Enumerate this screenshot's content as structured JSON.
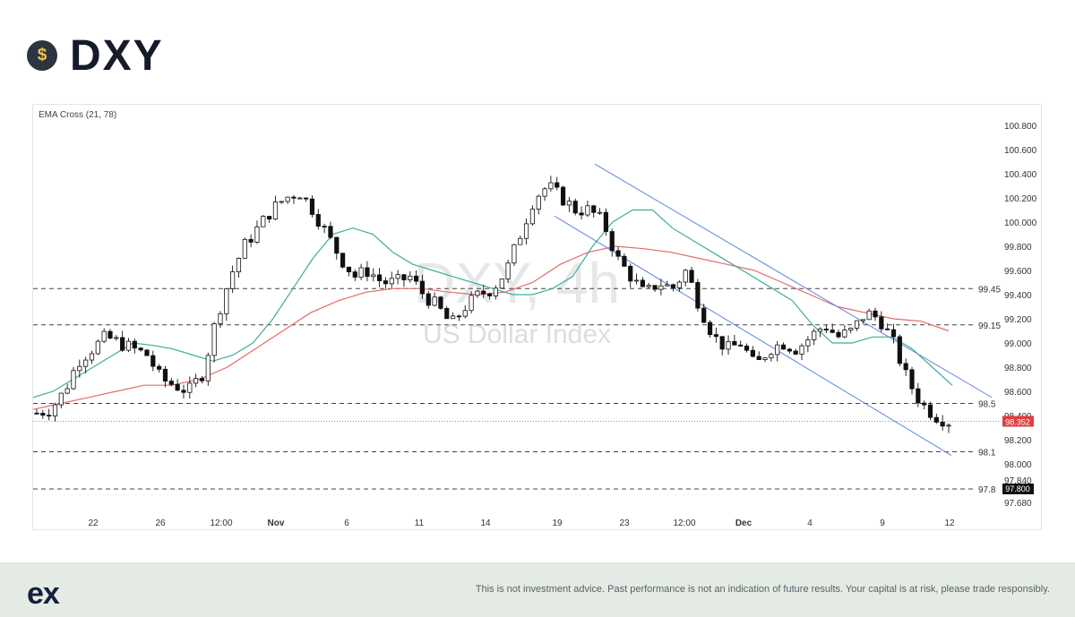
{
  "header": {
    "coin_icon": "dollar-coin-icon",
    "coin_symbol": "$",
    "title": "DXY"
  },
  "footer": {
    "logo": "ex",
    "disclaimer": "This is not investment advice. Past performance is not an indication of future results. Your capital is at risk, please trade responsibly."
  },
  "chart_data": {
    "type": "candlestick",
    "indicator_label": "EMA Cross (21, 78)",
    "watermark_title": "DXY, 4h",
    "watermark_subtitle": "US Dollar Index",
    "y_ticks": [
      "100.800",
      "100.600",
      "100.400",
      "100.200",
      "100.000",
      "99.800",
      "99.600",
      "99.400",
      "99.200",
      "99.000",
      "98.800",
      "98.600",
      "98.400",
      "98.200",
      "98.000",
      "97.840",
      "97.680"
    ],
    "x_ticks": [
      {
        "label": "22",
        "bold": false
      },
      {
        "label": "26",
        "bold": false
      },
      {
        "label": "12:00",
        "bold": false
      },
      {
        "label": "Nov",
        "bold": true
      },
      {
        "label": "6",
        "bold": false
      },
      {
        "label": "11",
        "bold": false
      },
      {
        "label": "14",
        "bold": false
      },
      {
        "label": "19",
        "bold": false
      },
      {
        "label": "23",
        "bold": false
      },
      {
        "label": "12:00",
        "bold": false
      },
      {
        "label": "Dec",
        "bold": true
      },
      {
        "label": "4",
        "bold": false
      },
      {
        "label": "9",
        "bold": false
      },
      {
        "label": "12",
        "bold": false
      }
    ],
    "levels": [
      {
        "label": "99.45",
        "value": 99.45
      },
      {
        "label": "99.15",
        "value": 99.15
      },
      {
        "label": "98.5",
        "value": 98.5
      },
      {
        "label": "98.1",
        "value": 98.1
      },
      {
        "label": "97.8",
        "value": 97.8
      }
    ],
    "current_price": {
      "label": "98.352",
      "value": 98.352
    },
    "level_price_box": {
      "label": "97.800",
      "value": 97.8
    },
    "close_path": [
      98.42,
      98.45,
      98.6,
      98.85,
      98.95,
      99.05,
      99.0,
      98.95,
      98.9,
      98.7,
      98.65,
      98.6,
      98.75,
      99.2,
      99.55,
      99.8,
      99.95,
      100.1,
      100.2,
      100.25,
      100.1,
      99.9,
      99.7,
      99.55,
      99.6,
      99.5,
      99.5,
      99.55,
      99.4,
      99.3,
      99.15,
      99.3,
      99.4,
      99.45,
      99.6,
      99.9,
      100.2,
      100.3,
      100.2,
      100.1,
      100.1,
      100.0,
      99.7,
      99.55,
      99.4,
      99.5,
      99.45,
      99.6,
      99.3,
      99.05,
      98.95,
      99.0,
      98.8,
      98.95,
      99.0,
      98.95,
      99.05,
      99.15,
      99.05,
      99.1,
      99.25,
      99.2,
      99.0,
      98.7,
      98.5,
      98.4,
      98.35
    ],
    "ema21_path": [
      98.55,
      98.6,
      98.7,
      98.8,
      98.9,
      99.0,
      98.98,
      98.95,
      98.9,
      98.85,
      98.9,
      99.0,
      99.2,
      99.45,
      99.7,
      99.9,
      99.95,
      99.9,
      99.75,
      99.65,
      99.6,
      99.55,
      99.5,
      99.45,
      99.4,
      99.4,
      99.45,
      99.55,
      99.8,
      100.0,
      100.1,
      100.1,
      99.95,
      99.85,
      99.75,
      99.65,
      99.55,
      99.45,
      99.35,
      99.15,
      99.0,
      99.0,
      99.05,
      99.05,
      98.95,
      98.8,
      98.65
    ],
    "ema78_path": [
      98.45,
      98.5,
      98.55,
      98.6,
      98.65,
      98.65,
      98.7,
      98.8,
      98.95,
      99.1,
      99.25,
      99.35,
      99.42,
      99.45,
      99.45,
      99.42,
      99.4,
      99.42,
      99.5,
      99.65,
      99.75,
      99.8,
      99.78,
      99.75,
      99.7,
      99.65,
      99.6,
      99.5,
      99.4,
      99.3,
      99.25,
      99.2,
      99.18,
      99.1
    ],
    "channel_upper": [
      [
        98.5,
        100.48
      ],
      [
        98.0,
        98.55
      ]
    ],
    "channel_lower": [
      [
        100.05,
        98.1
      ]
    ]
  }
}
